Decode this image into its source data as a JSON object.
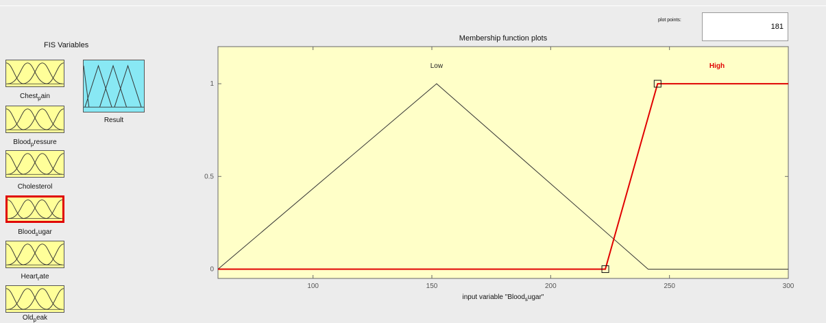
{
  "fis_variables_title": "FIS Variables",
  "inputs": [
    {
      "label": "Chest",
      "sub": "p",
      "rest": "ain",
      "selected": false
    },
    {
      "label": "Blood",
      "sub": "p",
      "rest": "ressure",
      "selected": false
    },
    {
      "label": "Cholesterol",
      "sub": "",
      "rest": "",
      "selected": false
    },
    {
      "label": "Blood",
      "sub": "s",
      "rest": "ugar",
      "selected": true
    },
    {
      "label": "Heart",
      "sub": "r",
      "rest": "ate",
      "selected": false
    },
    {
      "label": "Old",
      "sub": "p",
      "rest": "eak",
      "selected": false
    }
  ],
  "output": {
    "label": "Result"
  },
  "plot_points": {
    "label": "plot points:",
    "value": "181"
  },
  "plot_title": "Membership function plots",
  "colors": {
    "plot_bg": "#ffffc8",
    "selected_mf": "#e00000",
    "mf": "#333333",
    "var_box": "#ffff99",
    "output_box": "#88e8f4"
  },
  "chart_data": {
    "type": "line",
    "title": "Membership function plots",
    "xlabel_prefix": "input variable \"Blood",
    "xlabel_sub": "s",
    "xlabel_suffix": "ugar\"",
    "xlim": [
      60,
      300
    ],
    "ylim": [
      -0.05,
      1.2
    ],
    "xticks": [
      100,
      150,
      200,
      250,
      300
    ],
    "yticks": [
      0,
      0.5,
      1
    ],
    "series": [
      {
        "name": "Low",
        "points": [
          [
            60,
            0
          ],
          [
            152,
            1
          ],
          [
            241,
            0
          ],
          [
            300,
            0
          ]
        ],
        "selected": false
      },
      {
        "name": "High",
        "points": [
          [
            60,
            0
          ],
          [
            223,
            0
          ],
          [
            245,
            1
          ],
          [
            300,
            1
          ]
        ],
        "selected": true,
        "handles": [
          [
            223,
            0
          ],
          [
            245,
            1
          ]
        ]
      }
    ],
    "labels": [
      {
        "text": "Low",
        "x": 152,
        "y": 1.1
      },
      {
        "text": "High",
        "x": 270,
        "y": 1.1
      }
    ]
  }
}
